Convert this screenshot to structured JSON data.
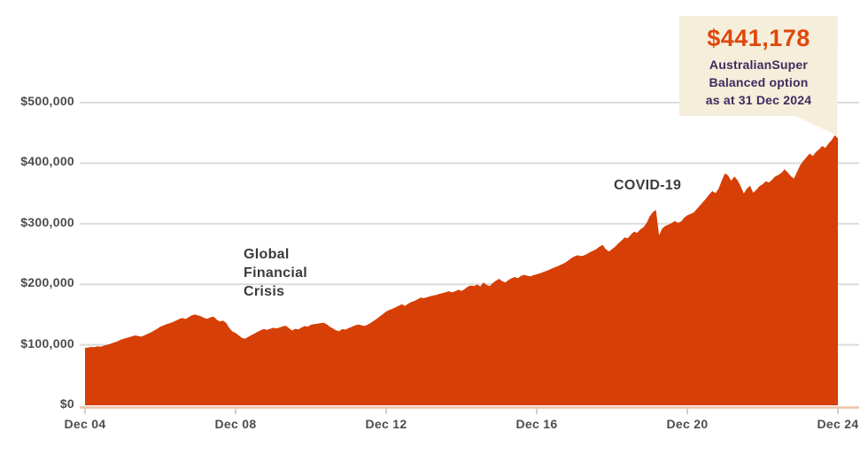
{
  "chart_data": {
    "type": "area",
    "series_name": "AustralianSuper Balanced option",
    "x_tick_labels": [
      "Dec 04",
      "Dec 08",
      "Dec 12",
      "Dec 16",
      "Dec 20",
      "Dec 24"
    ],
    "y_tick_labels": [
      "$0",
      "$100,000",
      "$200,000",
      "$300,000",
      "$400,000",
      "$500,000"
    ],
    "y_ticks": [
      0,
      100000,
      200000,
      300000,
      400000,
      500000
    ],
    "ylim": [
      0,
      500000
    ],
    "grid": "horizontal",
    "values_monthly": [
      95000,
      95500,
      96500,
      96000,
      97500,
      97000,
      98500,
      100000,
      101500,
      103500,
      105000,
      107500,
      109500,
      111000,
      112500,
      114000,
      115500,
      114500,
      113500,
      116000,
      118000,
      120500,
      123500,
      126500,
      130000,
      132000,
      134000,
      135500,
      137500,
      140000,
      142500,
      144500,
      142500,
      145500,
      148500,
      150000,
      148500,
      147000,
      144500,
      143000,
      145500,
      146500,
      141500,
      138500,
      140000,
      136000,
      127500,
      122000,
      119500,
      115500,
      111500,
      110000,
      113000,
      116000,
      118500,
      121500,
      124000,
      126000,
      124500,
      126500,
      128000,
      127000,
      128500,
      130500,
      131500,
      127500,
      123500,
      126500,
      125500,
      128500,
      131000,
      130000,
      133000,
      134000,
      135000,
      135500,
      136500,
      134000,
      130000,
      127000,
      124000,
      122500,
      126000,
      125000,
      127500,
      129500,
      132000,
      133500,
      132500,
      131000,
      133000,
      136000,
      139500,
      143000,
      147000,
      151000,
      155000,
      157500,
      159500,
      162000,
      164500,
      167000,
      164000,
      168000,
      170500,
      172500,
      175000,
      178000,
      177000,
      178500,
      180000,
      181500,
      182500,
      184000,
      185500,
      187000,
      188500,
      186500,
      188500,
      191000,
      189000,
      192000,
      196000,
      198000,
      197000,
      199500,
      196500,
      203000,
      199000,
      197000,
      202000,
      206000,
      209000,
      205000,
      203000,
      207000,
      210000,
      212000,
      210000,
      214000,
      215500,
      214000,
      213000,
      215000,
      216500,
      218000,
      220000,
      222000,
      224000,
      226500,
      228500,
      230500,
      233000,
      235500,
      239000,
      243000,
      246000,
      248000,
      246500,
      247500,
      250000,
      253000,
      255500,
      258000,
      262000,
      265000,
      258000,
      254000,
      258000,
      262000,
      267500,
      272000,
      277500,
      276000,
      282000,
      287000,
      285000,
      290500,
      294000,
      301000,
      312000,
      319000,
      323000,
      281000,
      292000,
      296500,
      298500,
      301000,
      304500,
      301500,
      303500,
      310000,
      314000,
      316000,
      318500,
      324000,
      330000,
      336000,
      342000,
      348500,
      354000,
      350500,
      358000,
      372000,
      383000,
      380000,
      371000,
      378000,
      372000,
      362000,
      350000,
      358000,
      363000,
      351000,
      356000,
      362000,
      365000,
      370000,
      368000,
      372500,
      378000,
      380500,
      384000,
      390000,
      385000,
      378500,
      374500,
      386000,
      397000,
      404000,
      410000,
      416000,
      412000,
      418500,
      423000,
      428500,
      425000,
      432500,
      438000,
      446000,
      441178
    ],
    "final_value": 441178,
    "annotations": {
      "gfc": "Global\nFinancial\nCrisis",
      "covid": "COVID-19"
    },
    "callout": {
      "value": "$441,178",
      "description": "AustralianSuper\nBalanced option\nas at 31 Dec 2024"
    },
    "colors": {
      "area": "#d63f06",
      "callout_bg": "#f5eeda",
      "callout_value": "#e0470b",
      "callout_text": "#412a5e",
      "gridline": "#dcdcdc",
      "axis_line": "#eec1a8",
      "tick_mark": "#d9cfc9"
    }
  }
}
